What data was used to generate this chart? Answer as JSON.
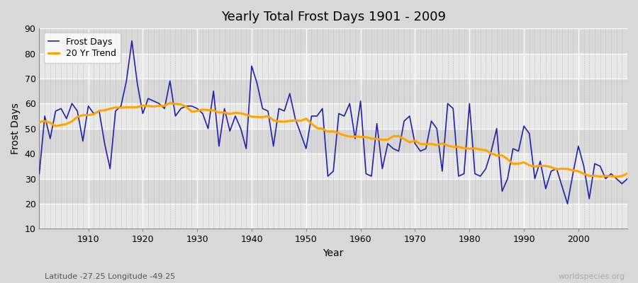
{
  "title": "Yearly Total Frost Days 1901 - 2009",
  "xlabel": "Year",
  "ylabel": "Frost Days",
  "subtitle": "Latitude -27.25 Longitude -49.25",
  "watermark": "worldspecies.org",
  "ylim": [
    10,
    90
  ],
  "xlim": [
    1901,
    2009
  ],
  "yticks": [
    10,
    20,
    30,
    40,
    50,
    60,
    70,
    80,
    90
  ],
  "xticks": [
    1910,
    1920,
    1930,
    1940,
    1950,
    1960,
    1970,
    1980,
    1990,
    2000
  ],
  "frost_color": "#2222aa",
  "trend_color": "#FFA500",
  "bg_color": "#d8d8d8",
  "plot_bg_color": "#e8e8e8",
  "band_color1": "#e8e8e8",
  "band_color2": "#d8d8d8",
  "legend_labels": [
    "Frost Days",
    "20 Yr Trend"
  ],
  "years": [
    1901,
    1902,
    1903,
    1904,
    1905,
    1906,
    1907,
    1908,
    1909,
    1910,
    1911,
    1912,
    1913,
    1914,
    1915,
    1916,
    1917,
    1918,
    1919,
    1920,
    1921,
    1922,
    1923,
    1924,
    1925,
    1926,
    1927,
    1928,
    1929,
    1930,
    1931,
    1932,
    1933,
    1934,
    1935,
    1936,
    1937,
    1938,
    1939,
    1940,
    1941,
    1942,
    1943,
    1944,
    1945,
    1946,
    1947,
    1948,
    1949,
    1950,
    1951,
    1952,
    1953,
    1954,
    1955,
    1956,
    1957,
    1958,
    1959,
    1960,
    1961,
    1962,
    1963,
    1964,
    1965,
    1966,
    1967,
    1968,
    1969,
    1970,
    1971,
    1972,
    1973,
    1974,
    1975,
    1976,
    1977,
    1978,
    1979,
    1980,
    1981,
    1982,
    1983,
    1984,
    1985,
    1986,
    1987,
    1988,
    1989,
    1990,
    1991,
    1992,
    1993,
    1994,
    1995,
    1996,
    1997,
    1998,
    1999,
    2000,
    2001,
    2002,
    2003,
    2004,
    2005,
    2006,
    2007,
    2008,
    2009
  ],
  "frost_days": [
    32,
    55,
    46,
    57,
    58,
    54,
    60,
    57,
    45,
    59,
    56,
    57,
    44,
    34,
    57,
    59,
    69,
    85,
    68,
    56,
    62,
    61,
    60,
    58,
    69,
    55,
    58,
    59,
    59,
    58,
    56,
    50,
    65,
    43,
    58,
    49,
    55,
    50,
    42,
    75,
    68,
    58,
    57,
    43,
    58,
    57,
    64,
    54,
    48,
    42,
    55,
    55,
    58,
    31,
    33,
    56,
    55,
    60,
    46,
    61,
    32,
    31,
    52,
    34,
    44,
    42,
    41,
    53,
    55,
    44,
    41,
    42,
    53,
    50,
    33,
    60,
    58,
    31,
    32,
    60,
    32,
    31,
    34,
    41,
    50,
    25,
    30,
    42,
    41,
    51,
    48,
    30,
    37,
    26,
    33,
    34,
    27,
    20,
    32,
    43,
    35,
    22,
    36,
    35,
    30,
    32,
    30,
    28,
    30
  ]
}
